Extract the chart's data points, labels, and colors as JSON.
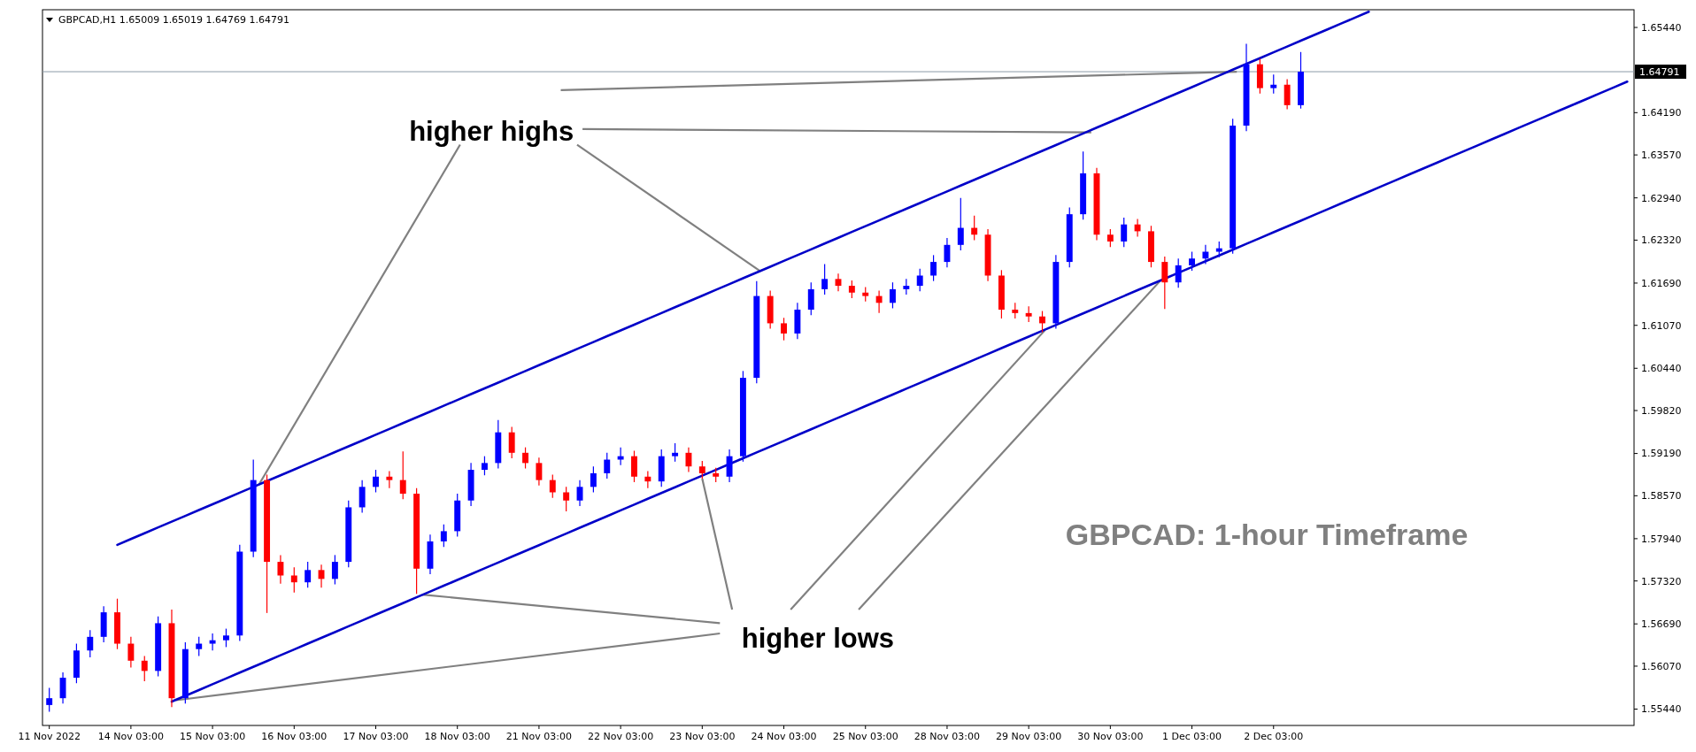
{
  "chart_data": {
    "type": "candlestick",
    "title": "GBPCAD,H1  1.65009 1.65019 1.64769 1.64791",
    "categories": [
      "11 Nov 2022",
      null,
      null,
      null,
      null,
      null,
      "14 Nov 03:00",
      null,
      null,
      null,
      null,
      null,
      "15 Nov 03:00",
      null,
      null,
      null,
      null,
      null,
      "16 Nov 03:00",
      null,
      null,
      null,
      null,
      null,
      "17 Nov 03:00",
      null,
      null,
      null,
      null,
      null,
      "18 Nov 03:00",
      null,
      null,
      null,
      null,
      null,
      "21 Nov 03:00",
      null,
      null,
      null,
      null,
      null,
      "22 Nov 03:00",
      null,
      null,
      null,
      null,
      null,
      "23 Nov 03:00",
      null,
      null,
      null,
      null,
      null,
      "24 Nov 03:00",
      null,
      null,
      null,
      null,
      null,
      "25 Nov 03:00",
      null,
      null,
      null,
      null,
      null,
      "28 Nov 03:00",
      null,
      null,
      null,
      null,
      null,
      "29 Nov 03:00",
      null,
      null,
      null,
      null,
      null,
      "30 Nov 03:00",
      null,
      null,
      null,
      null,
      null,
      "1 Dec 03:00",
      null,
      null,
      null,
      null,
      null,
      "2 Dec 03:00",
      null,
      null,
      null,
      null,
      null,
      null,
      null,
      null,
      null,
      null,
      null,
      null,
      null,
      null,
      null,
      null,
      null,
      null,
      null,
      null,
      null,
      null,
      null,
      null,
      null,
      null
    ],
    "series": [
      {
        "ohlc": [
          [
            1.555,
            1.5575,
            1.554,
            1.556
          ],
          [
            1.556,
            1.5598,
            1.5552,
            1.559
          ],
          [
            1.559,
            1.564,
            1.5582,
            1.563
          ],
          [
            1.563,
            1.566,
            1.562,
            1.565
          ],
          [
            1.565,
            1.5695,
            1.5642,
            1.5686
          ],
          [
            1.5686,
            1.5706,
            1.5632,
            1.564
          ],
          [
            1.564,
            1.565,
            1.5605,
            1.5615
          ],
          [
            1.5615,
            1.5622,
            1.5585,
            1.56
          ],
          [
            1.56,
            1.568,
            1.5592,
            1.567
          ],
          [
            1.567,
            1.569,
            1.5547,
            1.556
          ],
          [
            1.556,
            1.5642,
            1.5552,
            1.5632
          ],
          [
            1.5632,
            1.565,
            1.5622,
            1.564
          ],
          [
            1.564,
            1.5655,
            1.563,
            1.5645
          ],
          [
            1.5645,
            1.5662,
            1.5635,
            1.5652
          ],
          [
            1.5652,
            1.5785,
            1.5644,
            1.5775
          ],
          [
            1.5775,
            1.591,
            1.5767,
            1.588
          ],
          [
            1.588,
            1.5888,
            1.5685,
            1.576
          ],
          [
            1.576,
            1.577,
            1.5728,
            1.574
          ],
          [
            1.574,
            1.5752,
            1.5715,
            1.573
          ],
          [
            1.573,
            1.576,
            1.5722,
            1.5748
          ],
          [
            1.5748,
            1.5756,
            1.5722,
            1.5735
          ],
          [
            1.5735,
            1.577,
            1.5727,
            1.576
          ],
          [
            1.576,
            1.585,
            1.5752,
            1.584
          ],
          [
            1.584,
            1.588,
            1.5832,
            1.587
          ],
          [
            1.587,
            1.5895,
            1.5862,
            1.5885
          ],
          [
            1.5885,
            1.5893,
            1.5868,
            1.588
          ],
          [
            1.588,
            1.5922,
            1.5852,
            1.586
          ],
          [
            1.586,
            1.5868,
            1.5713,
            1.575
          ],
          [
            1.575,
            1.58,
            1.5742,
            1.579
          ],
          [
            1.579,
            1.5815,
            1.5782,
            1.5805
          ],
          [
            1.5805,
            1.586,
            1.5797,
            1.585
          ],
          [
            1.585,
            1.5905,
            1.5842,
            1.5895
          ],
          [
            1.5895,
            1.5915,
            1.5887,
            1.5905
          ],
          [
            1.5905,
            1.5968,
            1.5897,
            1.595
          ],
          [
            1.595,
            1.5958,
            1.5912,
            1.592
          ],
          [
            1.592,
            1.5928,
            1.5897,
            1.5905
          ],
          [
            1.5905,
            1.5913,
            1.5872,
            1.588
          ],
          [
            1.588,
            1.5888,
            1.5854,
            1.5862
          ],
          [
            1.5862,
            1.587,
            1.5834,
            1.585
          ],
          [
            1.585,
            1.588,
            1.5842,
            1.587
          ],
          [
            1.587,
            1.59,
            1.5862,
            1.589
          ],
          [
            1.589,
            1.592,
            1.5882,
            1.591
          ],
          [
            1.591,
            1.5928,
            1.5902,
            1.5915
          ],
          [
            1.5915,
            1.5923,
            1.5877,
            1.5885
          ],
          [
            1.5885,
            1.5893,
            1.5868,
            1.5878
          ],
          [
            1.5878,
            1.5925,
            1.587,
            1.5915
          ],
          [
            1.5915,
            1.5934,
            1.5907,
            1.592
          ],
          [
            1.592,
            1.5928,
            1.5892,
            1.59
          ],
          [
            1.59,
            1.5908,
            1.5882,
            1.589
          ],
          [
            1.589,
            1.5898,
            1.5877,
            1.5885
          ],
          [
            1.5885,
            1.5925,
            1.5877,
            1.5915
          ],
          [
            1.5915,
            1.604,
            1.5907,
            1.603
          ],
          [
            1.603,
            1.6172,
            1.6022,
            1.615
          ],
          [
            1.615,
            1.6158,
            1.6102,
            1.611
          ],
          [
            1.611,
            1.6118,
            1.6085,
            1.6095
          ],
          [
            1.6095,
            1.614,
            1.6087,
            1.613
          ],
          [
            1.613,
            1.617,
            1.6122,
            1.616
          ],
          [
            1.616,
            1.6197,
            1.6152,
            1.6175
          ],
          [
            1.6175,
            1.6183,
            1.6157,
            1.6165
          ],
          [
            1.6165,
            1.6173,
            1.6147,
            1.6155
          ],
          [
            1.6155,
            1.6163,
            1.6142,
            1.615
          ],
          [
            1.615,
            1.6158,
            1.6125,
            1.614
          ],
          [
            1.614,
            1.617,
            1.6132,
            1.616
          ],
          [
            1.616,
            1.6175,
            1.6152,
            1.6165
          ],
          [
            1.6165,
            1.619,
            1.6157,
            1.618
          ],
          [
            1.618,
            1.621,
            1.6172,
            1.62
          ],
          [
            1.62,
            1.6235,
            1.6192,
            1.6225
          ],
          [
            1.6225,
            1.6294,
            1.6217,
            1.625
          ],
          [
            1.625,
            1.6268,
            1.6232,
            1.624
          ],
          [
            1.624,
            1.6248,
            1.6172,
            1.618
          ],
          [
            1.618,
            1.6188,
            1.6117,
            1.613
          ],
          [
            1.613,
            1.614,
            1.6117,
            1.6125
          ],
          [
            1.6125,
            1.6135,
            1.6112,
            1.612
          ],
          [
            1.612,
            1.6128,
            1.6097,
            1.611
          ],
          [
            1.611,
            1.621,
            1.6102,
            1.62
          ],
          [
            1.62,
            1.628,
            1.6192,
            1.627
          ],
          [
            1.627,
            1.6362,
            1.6262,
            1.633
          ],
          [
            1.633,
            1.6338,
            1.6232,
            1.624
          ],
          [
            1.624,
            1.6248,
            1.6222,
            1.623
          ],
          [
            1.623,
            1.6265,
            1.6222,
            1.6255
          ],
          [
            1.6255,
            1.6263,
            1.6237,
            1.6245
          ],
          [
            1.6245,
            1.6253,
            1.6192,
            1.62
          ],
          [
            1.62,
            1.6208,
            1.6131,
            1.617
          ],
          [
            1.617,
            1.6205,
            1.6162,
            1.6195
          ],
          [
            1.6195,
            1.6215,
            1.6187,
            1.6205
          ],
          [
            1.6205,
            1.6225,
            1.6197,
            1.6215
          ],
          [
            1.6215,
            1.623,
            1.6207,
            1.622
          ],
          [
            1.622,
            1.641,
            1.6212,
            1.64
          ],
          [
            1.64,
            1.652,
            1.6392,
            1.649
          ],
          [
            1.649,
            1.6498,
            1.6447,
            1.6455
          ],
          [
            1.6455,
            1.6475,
            1.6447,
            1.646
          ],
          [
            1.646,
            1.6468,
            1.6424,
            1.643
          ],
          [
            1.643,
            1.6508,
            1.6425,
            1.64791
          ],
          null,
          null,
          null,
          null,
          null,
          null,
          null,
          null,
          null,
          null,
          null,
          null,
          null,
          null,
          null,
          null,
          null,
          null,
          null,
          null,
          null,
          null,
          null,
          null
        ],
        "colors": [
          "#0000ff",
          "#0000ff",
          "#0000ff",
          "#0000ff",
          "#0000ff",
          "#ff0000",
          "#ff0000",
          "#ff0000",
          "#0000ff",
          "#ff0000",
          "#0000ff",
          "#0000ff",
          "#0000ff",
          "#0000ff",
          "#0000ff",
          "#0000ff",
          "#ff0000",
          "#ff0000",
          "#ff0000",
          "#0000ff",
          "#ff0000",
          "#0000ff",
          "#0000ff",
          "#0000ff",
          "#0000ff",
          "#ff0000",
          "#ff0000",
          "#ff0000",
          "#0000ff",
          "#0000ff",
          "#0000ff",
          "#0000ff",
          "#0000ff",
          "#0000ff",
          "#ff0000",
          "#ff0000",
          "#ff0000",
          "#ff0000",
          "#ff0000",
          "#0000ff",
          "#0000ff",
          "#0000ff",
          "#0000ff",
          "#ff0000",
          "#ff0000",
          "#0000ff",
          "#0000ff",
          "#ff0000",
          "#ff0000",
          "#ff0000",
          "#0000ff",
          "#0000ff",
          "#0000ff",
          "#ff0000",
          "#ff0000",
          "#0000ff",
          "#0000ff",
          "#0000ff",
          "#ff0000",
          "#ff0000",
          "#ff0000",
          "#ff0000",
          "#0000ff",
          "#0000ff",
          "#0000ff",
          "#0000ff",
          "#0000ff",
          "#0000ff",
          "#ff0000",
          "#ff0000",
          "#ff0000",
          "#ff0000",
          "#ff0000",
          "#ff0000",
          "#0000ff",
          "#0000ff",
          "#0000ff",
          "#ff0000",
          "#ff0000",
          "#0000ff",
          "#ff0000",
          "#ff0000",
          "#ff0000",
          "#0000ff",
          "#0000ff",
          "#0000ff",
          "#0000ff",
          "#0000ff",
          "#0000ff",
          "#ff0000",
          "#0000ff",
          "#ff0000",
          "#0000ff",
          null,
          null,
          null,
          null,
          null,
          null,
          null,
          null,
          null,
          null,
          null,
          null,
          null,
          null,
          null,
          null,
          null,
          null,
          null,
          null,
          null,
          null,
          null,
          null
        ]
      },
      {
        "type": "line",
        "color": "#0000c8",
        "values": [
          null,
          null,
          null,
          null,
          null,
          1.5785,
          1.57935,
          1.5802,
          1.58105,
          1.5819,
          1.58275,
          1.5836,
          1.58445,
          1.5853,
          1.58615,
          1.587,
          1.58785,
          1.5887,
          1.58955,
          1.5904,
          1.59125,
          1.5921,
          1.59295,
          1.5938,
          1.59465,
          1.5955,
          1.59635,
          1.5972,
          1.59805,
          1.5989,
          1.59975,
          1.6006,
          1.60145,
          1.6023,
          1.60315,
          1.604,
          1.60485,
          1.6057,
          1.60655,
          1.6074,
          1.60825,
          1.6091,
          1.60995,
          1.6108,
          1.61165,
          1.6125,
          1.61335,
          1.6142,
          1.61505,
          1.6159,
          1.61675,
          1.6176,
          1.61845,
          1.6193,
          1.62015,
          1.621,
          1.62185,
          1.6227,
          1.62355,
          1.6244,
          1.62525,
          1.6261,
          1.62695,
          1.6278,
          1.62865,
          1.6295,
          1.63035,
          1.6312,
          1.63205,
          1.6329,
          1.63375,
          1.6346,
          1.63545,
          1.6363,
          1.63715,
          1.638,
          1.63885,
          1.6397,
          1.64055,
          1.6414,
          1.64225,
          1.6431,
          1.64395,
          1.6448,
          1.64565,
          1.6465,
          1.64735,
          1.6482,
          1.64905,
          1.6499,
          1.65075,
          1.6516,
          1.65245,
          1.6533,
          1.65415,
          1.655,
          1.65585,
          1.6567,
          null,
          null,
          null,
          null,
          null,
          null,
          null,
          null,
          null,
          null,
          null,
          null,
          null,
          null,
          null,
          null,
          null,
          null,
          null
        ]
      },
      {
        "type": "line",
        "color": "#0000c8",
        "values": [
          null,
          null,
          null,
          null,
          null,
          null,
          null,
          null,
          null,
          1.5555,
          1.55635,
          1.5572,
          1.55805,
          1.5589,
          1.55975,
          1.5606,
          1.56145,
          1.5623,
          1.56315,
          1.564,
          1.56485,
          1.5657,
          1.56655,
          1.5674,
          1.56825,
          1.5691,
          1.56995,
          1.5708,
          1.57165,
          1.5725,
          1.57335,
          1.5742,
          1.57505,
          1.5759,
          1.57675,
          1.5776,
          1.57845,
          1.5793,
          1.58015,
          1.581,
          1.58185,
          1.5827,
          1.58355,
          1.5844,
          1.58525,
          1.5861,
          1.58695,
          1.5878,
          1.58865,
          1.5895,
          1.59035,
          1.5912,
          1.59205,
          1.5929,
          1.59375,
          1.5946,
          1.59545,
          1.5963,
          1.59715,
          1.598,
          1.59885,
          1.5997,
          1.60055,
          1.6014,
          1.60225,
          1.6031,
          1.60395,
          1.6048,
          1.60565,
          1.6065,
          1.60735,
          1.6082,
          1.60905,
          1.6099,
          1.61075,
          1.6116,
          1.61245,
          1.6133,
          1.61415,
          1.615,
          1.61585,
          1.6167,
          1.61755,
          1.6184,
          1.61925,
          1.6201,
          1.62095,
          1.6218,
          1.62265,
          1.6235,
          1.62435,
          1.6252,
          1.62605,
          1.6269,
          1.62775,
          1.6286,
          1.62945,
          1.6303,
          1.63115,
          1.632,
          1.63285,
          1.6337,
          1.63455,
          1.6354,
          1.63625,
          1.6371,
          1.63795,
          1.6388,
          1.63965,
          1.6405,
          1.64135,
          1.6422,
          1.64305,
          1.6439,
          1.64475,
          1.6456,
          1.64645
        ]
      }
    ],
    "ylim": [
      1.552,
      1.657
    ],
    "yticks": [
      {
        "value": 1.5544,
        "label": "1.55440"
      },
      {
        "value": 1.5607,
        "label": "1.56070"
      },
      {
        "value": 1.5669,
        "label": "1.56690"
      },
      {
        "value": 1.5732,
        "label": "1.57320"
      },
      {
        "value": 1.5794,
        "label": "1.57940"
      },
      {
        "value": 1.5857,
        "label": "1.58570"
      },
      {
        "value": 1.5919,
        "label": "1.59190"
      },
      {
        "value": 1.5982,
        "label": "1.59820"
      },
      {
        "value": 1.6044,
        "label": "1.60440"
      },
      {
        "value": 1.6107,
        "label": "1.61070"
      },
      {
        "value": 1.6169,
        "label": "1.61690"
      },
      {
        "value": 1.6232,
        "label": "1.62320"
      },
      {
        "value": 1.6294,
        "label": "1.62940"
      },
      {
        "value": 1.6357,
        "label": "1.63570"
      },
      {
        "value": 1.6419,
        "label": "1.64190"
      },
      {
        "value": 1.6544,
        "label": "1.65440"
      }
    ],
    "ref_lines": [
      {
        "axis": "y",
        "value": 1.64791,
        "label": "1.64791",
        "color": "#8c9ba8"
      }
    ],
    "annotations": [
      {
        "text": "higher highs",
        "y": 1.64791
      },
      {
        "text": "higher lows",
        "x": "23 Nov 03:00",
        "y": 1.5882
      },
      "GBPCAD: 1-hour Timeframe"
    ]
  }
}
